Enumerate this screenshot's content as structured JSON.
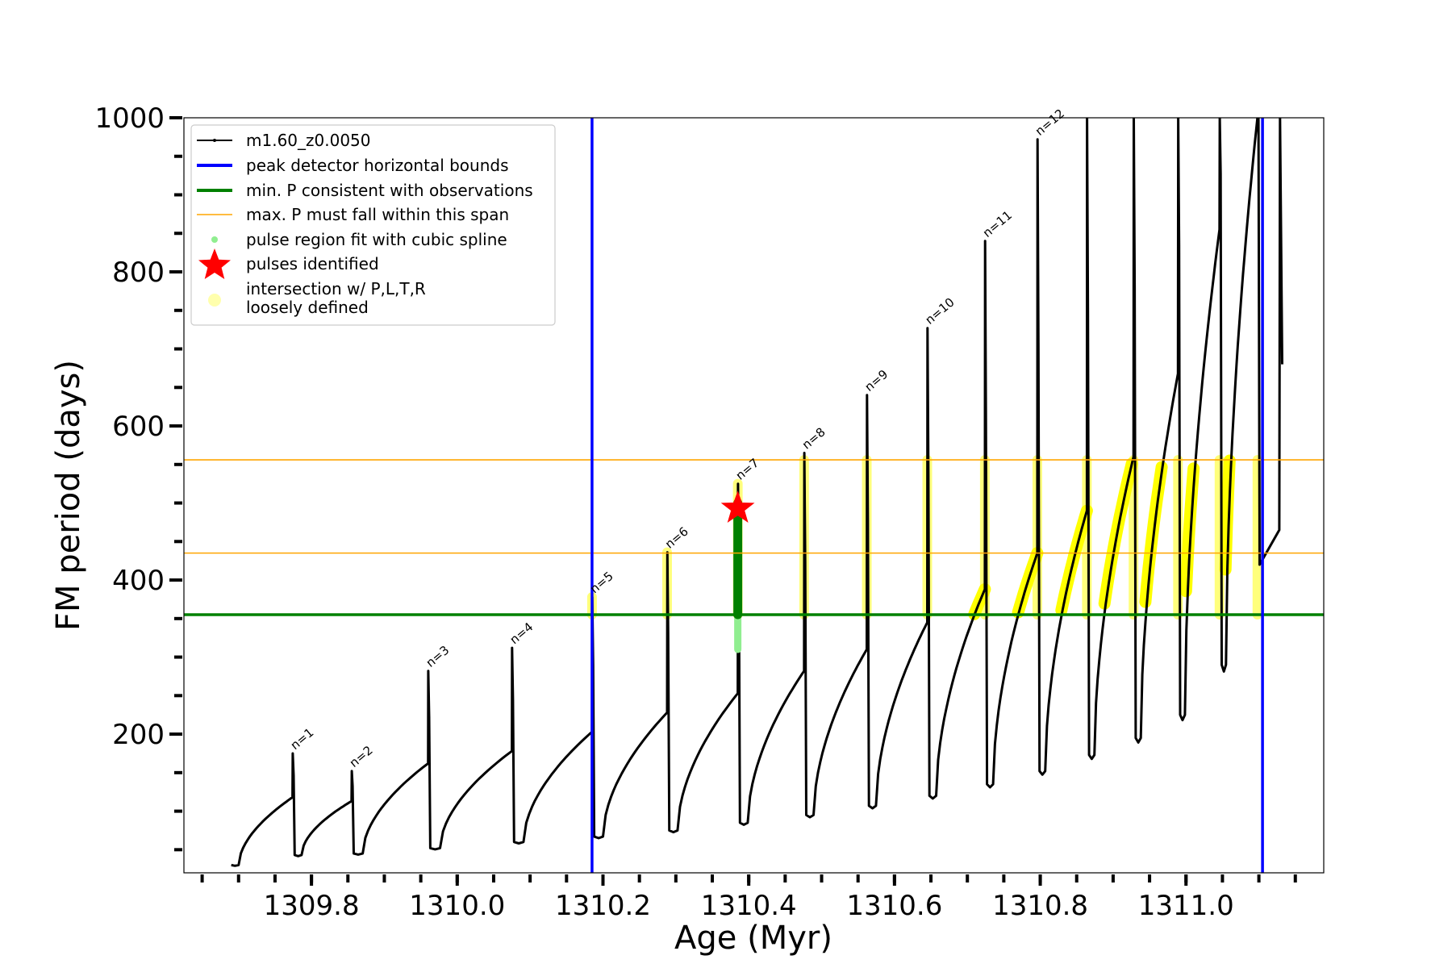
{
  "chart_data": {
    "type": "line",
    "title": "",
    "xlabel": "Age (Myr)",
    "ylabel": "FM period (days)",
    "xlim": [
      1309.625,
      1311.189
    ],
    "ylim": [
      20,
      1000
    ],
    "xticks": [
      1309.8,
      1310.0,
      1310.2,
      1310.4,
      1310.6,
      1310.8,
      1311.0
    ],
    "xtick_labels": [
      "1309.8",
      "1310.0",
      "1310.2",
      "1310.4",
      "1310.6",
      "1310.8",
      "1311.0"
    ],
    "yticks": [
      200,
      400,
      600,
      800,
      1000
    ],
    "ytick_labels": [
      "200",
      "400",
      "600",
      "800",
      "1000"
    ],
    "grid": false,
    "legend_position": "top-left",
    "legend": [
      {
        "label": "m1.60_z0.0050",
        "color": "#000000",
        "kind": "line-dot"
      },
      {
        "label": "peak detector horizontal bounds",
        "color": "#0000ff",
        "kind": "line"
      },
      {
        "label": "min. P consistent with observations",
        "color": "#008000",
        "kind": "line"
      },
      {
        "label": "max. P must fall within this span",
        "color": "#ffa500",
        "kind": "thin-line"
      },
      {
        "label": "pulse region fit with cubic spline",
        "color": "#90ee90",
        "kind": "dot"
      },
      {
        "label": "pulses identified",
        "color": "#ff0000",
        "kind": "star"
      },
      {
        "label": "intersection w/ P,L,T,R",
        "label_line2": "loosely defined",
        "color": "#ffff99",
        "kind": "circle"
      }
    ],
    "vertical_lines": [
      {
        "x": 1310.185,
        "color": "#0000ff"
      },
      {
        "x": 1311.105,
        "color": "#0000ff"
      }
    ],
    "horizontal_lines": [
      {
        "y": 355,
        "color": "#008000"
      },
      {
        "y": 435,
        "color": "#ffa500"
      },
      {
        "y": 556,
        "color": "#ffa500"
      }
    ],
    "pulses": [
      {
        "label": "n=1",
        "x": 1309.774,
        "peak": 175,
        "pre": 118,
        "trough": 43
      },
      {
        "label": "n=2",
        "x": 1309.855,
        "peak": 152,
        "pre": 113,
        "trough": 45
      },
      {
        "label": "n=3",
        "x": 1309.96,
        "peak": 282,
        "pre": 162,
        "trough": 52
      },
      {
        "label": "n=4",
        "x": 1310.075,
        "peak": 312,
        "pre": 178,
        "trough": 60
      },
      {
        "label": "n=5",
        "x": 1310.185,
        "peak": 378,
        "pre": 203,
        "trough": 67
      },
      {
        "label": "n=6",
        "x": 1310.288,
        "peak": 436,
        "pre": 228,
        "trough": 75
      },
      {
        "label": "n=7",
        "x": 1310.385,
        "peak": 525,
        "pre": 253,
        "trough": 85
      },
      {
        "label": "n=8",
        "x": 1310.476,
        "peak": 565,
        "pre": 282,
        "trough": 95
      },
      {
        "label": "n=9",
        "x": 1310.562,
        "peak": 640,
        "pre": 310,
        "trough": 107
      },
      {
        "label": "n=10",
        "x": 1310.645,
        "peak": 727,
        "pre": 345,
        "trough": 120
      },
      {
        "label": "n=11",
        "x": 1310.724,
        "peak": 840,
        "pre": 388,
        "trough": 135
      },
      {
        "label": "n=12",
        "x": 1310.796,
        "peak": 972,
        "pre": 435,
        "trough": 152
      },
      {
        "label": "",
        "x": 1310.864,
        "peak": 1000,
        "pre": 490,
        "trough": 173
      },
      {
        "label": "",
        "x": 1310.928,
        "peak": 1000,
        "pre": 560,
        "trough": 195
      },
      {
        "label": "",
        "x": 1310.989,
        "peak": 1000,
        "pre": 668,
        "trough": 225
      },
      {
        "label": "",
        "x": 1311.046,
        "peak": 1000,
        "pre": 855,
        "trough": 290
      },
      {
        "label": "",
        "x": 1311.098,
        "peak": 1000,
        "pre": 1000,
        "trough": 420
      }
    ],
    "pulses_identified": [
      {
        "x": 1310.385,
        "y": 493
      }
    ],
    "spline_fit_region": {
      "x": 1310.385,
      "y_min": 310,
      "y_max": 500
    },
    "highlight_region": {
      "x": 1310.385,
      "y_min": 355,
      "y_max": 500
    }
  }
}
